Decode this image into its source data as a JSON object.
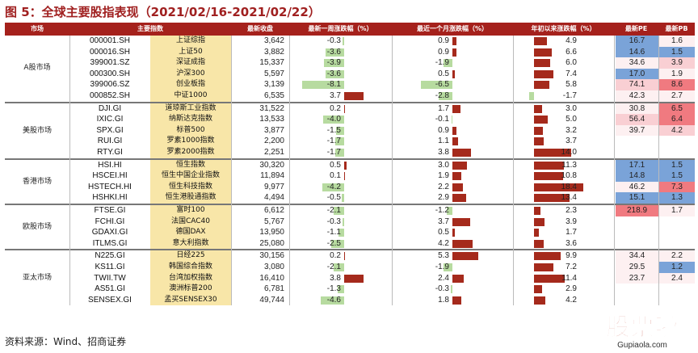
{
  "title": "图 5：全球主要股指表现（2021/02/16-2021/02/22）",
  "columns": [
    "市场",
    "主要指数",
    "最新收盘",
    "最新一周涨跌幅（%）",
    "最近一个月涨跌幅（%）",
    "年初以来涨跌幅（%）",
    "最新PE",
    "最新PB"
  ],
  "groups": [
    {
      "region": "A股市场",
      "rows": [
        {
          "code": "000001.SH",
          "name": "上证综指",
          "close": "3,642",
          "week": -0.3,
          "month": 0.9,
          "ytd": 4.9,
          "pe": "16.7",
          "pb": "1.6"
        },
        {
          "code": "000016.SH",
          "name": "上证50",
          "close": "3,882",
          "week": -3.6,
          "month": 0.9,
          "ytd": 6.6,
          "pe": "14.6",
          "pb": "1.5"
        },
        {
          "code": "399001.SZ",
          "name": "深证成指",
          "close": "15,337",
          "week": -3.9,
          "month": -1.9,
          "ytd": 6.0,
          "pe": "34.6",
          "pb": "3.9"
        },
        {
          "code": "000300.SH",
          "name": "沪深300",
          "close": "5,597",
          "week": -3.6,
          "month": 0.5,
          "ytd": 7.4,
          "pe": "17.0",
          "pb": "1.9"
        },
        {
          "code": "399006.SZ",
          "name": "创业板指",
          "close": "3,139",
          "week": -8.1,
          "month": -6.5,
          "ytd": 5.8,
          "pe": "74.1",
          "pb": "8.6"
        },
        {
          "code": "000852.SH",
          "name": "中证1000",
          "close": "6,535",
          "week": 3.7,
          "month": -2.8,
          "ytd": -1.7,
          "pe": "42.3",
          "pb": "2.7"
        }
      ]
    },
    {
      "region": "美股市场",
      "rows": [
        {
          "code": "DJI.GI",
          "name": "道琼斯工业指数",
          "close": "31,522",
          "week": 0.2,
          "month": 1.7,
          "ytd": 3.0,
          "pe": "30.8",
          "pb": "6.5"
        },
        {
          "code": "IXIC.GI",
          "name": "纳斯达克指数",
          "close": "13,533",
          "week": -4.0,
          "month": -0.1,
          "ytd": 5.0,
          "pe": "56.4",
          "pb": "6.4"
        },
        {
          "code": "SPX.GI",
          "name": "标普500",
          "close": "3,877",
          "week": -1.5,
          "month": 0.9,
          "ytd": 3.2,
          "pe": "39.7",
          "pb": "4.2"
        },
        {
          "code": "RUI.GI",
          "name": "罗素1000指数",
          "close": "2,200",
          "week": -1.7,
          "month": 1.1,
          "ytd": 3.7,
          "pe": "",
          "pb": ""
        },
        {
          "code": "RTY.GI",
          "name": "罗素2000指数",
          "close": "2,251",
          "week": -1.7,
          "month": 3.8,
          "ytd": 14.0,
          "pe": "",
          "pb": ""
        }
      ]
    },
    {
      "region": "香港市场",
      "rows": [
        {
          "code": "HSI.HI",
          "name": "恒生指数",
          "close": "30,320",
          "week": 0.5,
          "month": 3.0,
          "ytd": 11.3,
          "pe": "17.1",
          "pb": "1.5"
        },
        {
          "code": "HSCEI.HI",
          "name": "恒生中国企业指数",
          "close": "11,894",
          "week": 0.1,
          "month": 1.9,
          "ytd": 10.8,
          "pe": "14.8",
          "pb": "1.5"
        },
        {
          "code": "HSTECH.HI",
          "name": "恒生科技指数",
          "close": "9,977",
          "week": -4.2,
          "month": 2.2,
          "ytd": 18.4,
          "pe": "46.2",
          "pb": "7.3"
        },
        {
          "code": "HSHKI.HI",
          "name": "恒生港股通指数",
          "close": "4,494",
          "week": -0.5,
          "month": 2.9,
          "ytd": 13.4,
          "pe": "15.1",
          "pb": "1.3"
        }
      ]
    },
    {
      "region": "欧股市场",
      "rows": [
        {
          "code": "FTSE.GI",
          "name": "富时100",
          "close": "6,612",
          "week": -2.1,
          "month": -1.2,
          "ytd": 2.3,
          "pe": "218.9",
          "pb": "1.7"
        },
        {
          "code": "FCHI.GI",
          "name": "法国CAC40",
          "close": "5,767",
          "week": -0.3,
          "month": 3.7,
          "ytd": 3.9,
          "pe": "",
          "pb": ""
        },
        {
          "code": "GDAXI.GI",
          "name": "德国DAX",
          "close": "13,950",
          "week": -1.1,
          "month": 0.5,
          "ytd": 1.7,
          "pe": "",
          "pb": ""
        },
        {
          "code": "ITLMS.GI",
          "name": "意大利指数",
          "close": "25,080",
          "week": -2.5,
          "month": 4.2,
          "ytd": 3.6,
          "pe": "",
          "pb": ""
        }
      ]
    },
    {
      "region": "亚太市场",
      "rows": [
        {
          "code": "N225.GI",
          "name": "日经225",
          "close": "30,156",
          "week": 0.2,
          "month": 5.3,
          "ytd": 9.9,
          "pe": "34.4",
          "pb": "2.2"
        },
        {
          "code": "KS11.GI",
          "name": "韩国综合指数",
          "close": "3,080",
          "week": -2.1,
          "month": -1.9,
          "ytd": 7.2,
          "pe": "29.5",
          "pb": "1.2"
        },
        {
          "code": "TWII.TW",
          "name": "台湾加权指数",
          "close": "16,410",
          "week": 3.8,
          "month": 2.4,
          "ytd": 11.4,
          "pe": "23.7",
          "pb": "2.4"
        },
        {
          "code": "AS51.GI",
          "name": "澳洲标普200",
          "close": "6,781",
          "week": -1.3,
          "month": -0.3,
          "ytd": 2.9,
          "pe": "",
          "pb": ""
        },
        {
          "code": "SENSEX.GI",
          "name": "孟买SENSEX30",
          "close": "49,744",
          "week": -4.6,
          "month": 1.8,
          "ytd": 4.2,
          "pe": "",
          "pb": ""
        }
      ]
    }
  ],
  "colors": {
    "header": "#a5211c",
    "pos": "#a52a1c",
    "neg": "#b7dba0",
    "name_bg": "#f8e6a8",
    "blue": "#7aa3d8",
    "red": "#f07a80",
    "pink": "#f9cfd3"
  },
  "footer": "资料来源：Wind、招商证券",
  "watermark": {
    "text": "股票啦",
    "url": "Gupiaola.com"
  }
}
